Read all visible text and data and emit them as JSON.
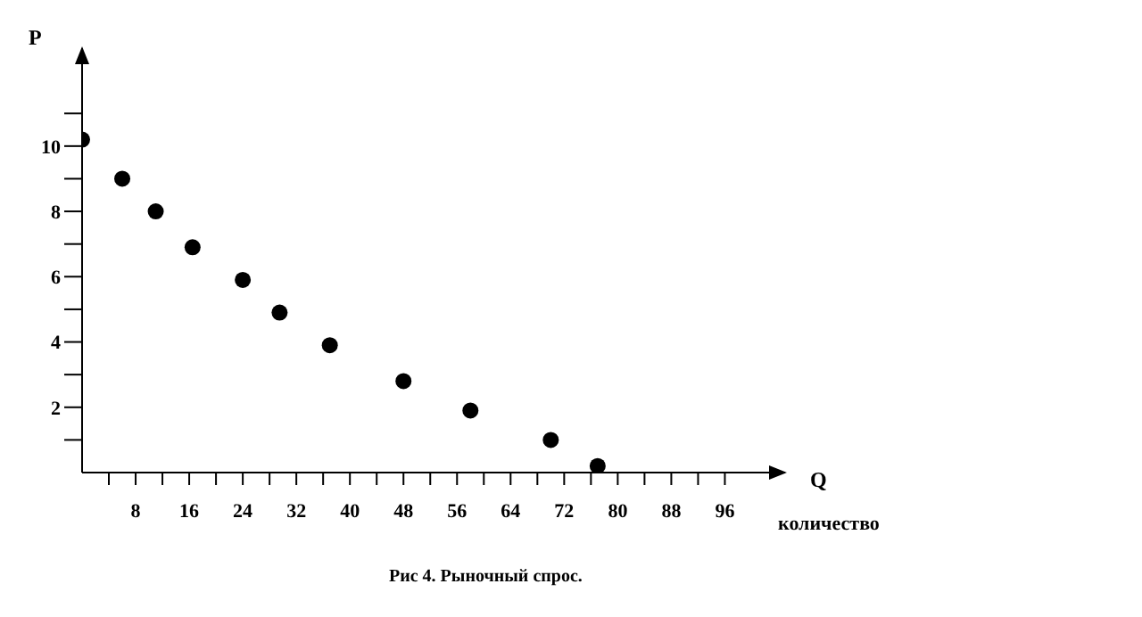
{
  "chart_data": {
    "type": "scatter",
    "xlabel": "Q",
    "ylabel": "P",
    "x": [
      0,
      6,
      11,
      16.5,
      24,
      29.5,
      37,
      48,
      58,
      70,
      77
    ],
    "values": [
      10.2,
      9,
      8,
      6.9,
      5.9,
      4.9,
      3.9,
      2.8,
      1.9,
      1,
      0.2
    ],
    "color": "#000000",
    "marker": "circle",
    "grid": false,
    "xlim": [
      0,
      105
    ],
    "ylim": [
      0,
      13
    ],
    "xticks": [
      {
        "value": 4,
        "label": null
      },
      8,
      {
        "value": 12,
        "label": null
      },
      16,
      {
        "value": 20,
        "label": null
      },
      24,
      {
        "value": 28,
        "label": null
      },
      32,
      {
        "value": 36,
        "label": null
      },
      40,
      {
        "value": 44,
        "label": null
      },
      48,
      {
        "value": 52,
        "label": null
      },
      56,
      {
        "value": 60,
        "label": null
      },
      64,
      {
        "value": 68,
        "label": null
      },
      72,
      {
        "value": 76,
        "label": null
      },
      80,
      {
        "value": 84,
        "label": null
      },
      88,
      {
        "value": 92,
        "label": null
      },
      96
    ],
    "yticks": [
      {
        "value": 1,
        "label": null
      },
      2,
      {
        "value": 3,
        "label": null
      },
      4,
      {
        "value": 5,
        "label": null
      },
      6,
      {
        "value": 7,
        "label": null
      },
      8,
      {
        "value": 9,
        "label": null
      },
      10,
      {
        "value": 11,
        "label": null
      }
    ],
    "annotations": [
      "количество",
      "Рис 4. Рыночный спрос."
    ]
  }
}
